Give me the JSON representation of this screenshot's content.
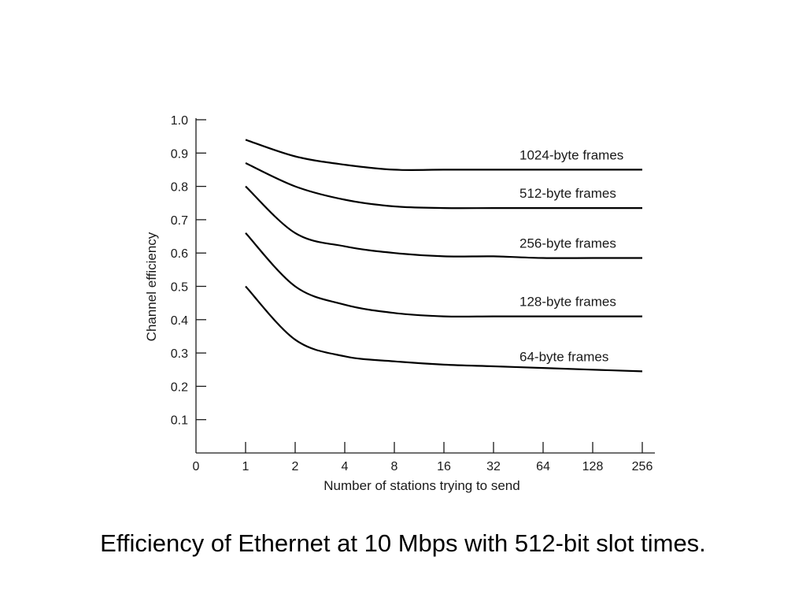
{
  "caption": "Efficiency of Ethernet at 10 Mbps with 512-bit slot times.",
  "chart_data": {
    "type": "line",
    "title": "",
    "xlabel": "Number of stations trying to send",
    "ylabel": "Channel efficiency",
    "x_categories": [
      "0",
      "1",
      "2",
      "4",
      "8",
      "16",
      "32",
      "64",
      "128",
      "256"
    ],
    "y_ticks": [
      "0.1",
      "0.2",
      "0.3",
      "0.4",
      "0.5",
      "0.6",
      "0.7",
      "0.8",
      "0.9",
      "1.0"
    ],
    "ylim": [
      0,
      1.0
    ],
    "grid": false,
    "series": [
      {
        "name": "1024-byte frames",
        "x": [
          1,
          2,
          4,
          8,
          16,
          32,
          64,
          128,
          256
        ],
        "y": [
          0.94,
          0.89,
          0.865,
          0.85,
          0.85,
          0.85,
          0.85,
          0.85,
          0.85
        ]
      },
      {
        "name": "512-byte frames",
        "x": [
          1,
          2,
          4,
          8,
          16,
          32,
          64,
          128,
          256
        ],
        "y": [
          0.87,
          0.8,
          0.76,
          0.74,
          0.735,
          0.735,
          0.735,
          0.735,
          0.735
        ]
      },
      {
        "name": "256-byte frames",
        "x": [
          1,
          2,
          4,
          8,
          16,
          32,
          64,
          128,
          256
        ],
        "y": [
          0.8,
          0.66,
          0.62,
          0.6,
          0.59,
          0.59,
          0.585,
          0.585,
          0.585
        ]
      },
      {
        "name": "128-byte frames",
        "x": [
          1,
          2,
          4,
          8,
          16,
          32,
          64,
          128,
          256
        ],
        "y": [
          0.66,
          0.5,
          0.445,
          0.42,
          0.41,
          0.41,
          0.41,
          0.41,
          0.41
        ]
      },
      {
        "name": "64-byte frames",
        "x": [
          1,
          2,
          4,
          8,
          16,
          32,
          64,
          128,
          256
        ],
        "y": [
          0.5,
          0.34,
          0.29,
          0.275,
          0.265,
          0.26,
          0.255,
          0.25,
          0.245
        ]
      }
    ]
  }
}
